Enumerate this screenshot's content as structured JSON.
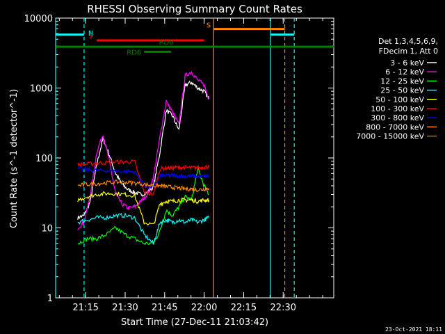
{
  "chart_data": {
    "type": "line",
    "title": "RHESSI Observing Summary Count Rates",
    "xlabel": "Start Time (27-Dec-11 21:03:42)",
    "ylabel": "Count Rate (s^-1 detector^-1)",
    "yscale": "log",
    "ylim": [
      1,
      10000
    ],
    "xlim_minutes": [
      21.06,
      22.82
    ],
    "x_tick_labels": [
      "21:15",
      "21:30",
      "21:45",
      "22:00",
      "22:15",
      "22:30"
    ],
    "x_tick_values": [
      21.25,
      21.5,
      21.75,
      22.0,
      22.25,
      22.5
    ],
    "y_tick_labels": [
      "1",
      "10",
      "100",
      "1000",
      "10000"
    ],
    "y_tick_values": [
      1,
      10,
      100,
      1000,
      10000
    ],
    "legend_header": [
      "Det 1,3,4,5,6,9,",
      "FDecim 1, Att 0"
    ],
    "legend_position": "right",
    "footer_date": "23-Oct-2021 18:11",
    "series": [
      {
        "name": "3 - 6 keV",
        "color": "#ffffff",
        "x": [
          21.2,
          21.24,
          21.28,
          21.32,
          21.36,
          21.4,
          21.44,
          21.48,
          21.52,
          21.56,
          21.6,
          21.64,
          21.68,
          21.72,
          21.76,
          21.8,
          21.84,
          21.88,
          21.92,
          21.96,
          22.0,
          22.03
        ],
        "y": [
          14,
          15,
          24,
          80,
          190,
          110,
          60,
          42,
          35,
          32,
          30,
          32,
          40,
          120,
          480,
          400,
          250,
          1100,
          1200,
          1000,
          900,
          700
        ]
      },
      {
        "name": "6 - 12 keV",
        "color": "#ff00ff",
        "x": [
          21.2,
          21.24,
          21.28,
          21.32,
          21.36,
          21.4,
          21.44,
          21.48,
          21.52,
          21.56,
          21.6,
          21.64,
          21.68,
          21.72,
          21.76,
          21.8,
          21.84,
          21.88,
          21.92,
          21.96,
          22.0,
          22.03
        ],
        "y": [
          10,
          12,
          30,
          120,
          220,
          90,
          30,
          22,
          19,
          20,
          24,
          30,
          55,
          200,
          650,
          450,
          300,
          1500,
          1700,
          1300,
          1100,
          700
        ]
      },
      {
        "name": "12 - 25 keV",
        "color": "#00ff00",
        "x": [
          21.2,
          21.26,
          21.32,
          21.38,
          21.44,
          21.5,
          21.56,
          21.62,
          21.68,
          21.72,
          21.76,
          21.8,
          21.84,
          21.88,
          21.92,
          21.96,
          22.0,
          22.03
        ],
        "y": [
          6,
          7,
          7,
          8,
          10,
          8,
          7,
          6,
          6,
          9,
          18,
          15,
          20,
          28,
          25,
          70,
          40,
          30
        ]
      },
      {
        "name": "25 - 50 keV",
        "color": "#00ffff",
        "x": [
          21.2,
          21.26,
          21.32,
          21.38,
          21.44,
          21.5,
          21.56,
          21.62,
          21.68,
          21.72,
          21.76,
          21.8,
          21.84,
          21.88,
          21.92,
          21.96,
          22.0,
          22.03
        ],
        "y": [
          12,
          13,
          14,
          14,
          15,
          15,
          14,
          8,
          6,
          12,
          13,
          12,
          13,
          12,
          13,
          12,
          13,
          14
        ]
      },
      {
        "name": "50 - 100 keV",
        "color": "#ffff00",
        "x": [
          21.2,
          21.26,
          21.32,
          21.38,
          21.44,
          21.5,
          21.56,
          21.62,
          21.68,
          21.72,
          21.76,
          21.8,
          21.84,
          21.88,
          21.92,
          21.96,
          22.0,
          22.03
        ],
        "y": [
          25,
          28,
          30,
          31,
          31,
          30,
          29,
          12,
          11,
          22,
          24,
          24,
          25,
          25,
          25,
          24,
          25,
          25
        ]
      },
      {
        "name": "100 - 300 keV",
        "color": "#ff0000",
        "x": [
          21.2,
          21.26,
          21.32,
          21.38,
          21.44,
          21.5,
          21.56,
          21.62,
          21.68,
          21.72,
          21.76,
          21.8,
          21.84,
          21.88,
          21.92,
          21.96,
          22.0,
          22.03
        ],
        "y": [
          80,
          82,
          84,
          86,
          88,
          88,
          88,
          32,
          30,
          70,
          72,
          72,
          73,
          73,
          72,
          73,
          74,
          75
        ]
      },
      {
        "name": "300 - 800 keV",
        "color": "#0000ff",
        "x": [
          21.2,
          21.26,
          21.32,
          21.38,
          21.44,
          21.5,
          21.56,
          21.62,
          21.68,
          21.72,
          21.76,
          21.8,
          21.84,
          21.88,
          21.92,
          21.96,
          22.0,
          22.03
        ],
        "y": [
          70,
          68,
          66,
          66,
          65,
          64,
          64,
          40,
          38,
          55,
          56,
          56,
          55,
          55,
          55,
          54,
          55,
          55
        ]
      },
      {
        "name": "800 - 7000 keV",
        "color": "#ff8800",
        "x": [
          21.2,
          21.26,
          21.32,
          21.38,
          21.44,
          21.5,
          21.56,
          21.62,
          21.68,
          21.72,
          21.76,
          21.8,
          21.84,
          21.88,
          21.92,
          21.96,
          22.0,
          22.03
        ],
        "y": [
          40,
          42,
          43,
          44,
          45,
          45,
          44,
          42,
          40,
          40,
          39,
          38,
          37,
          36,
          36,
          35,
          36,
          37
        ]
      },
      {
        "name": "7000 - 15000 keV",
        "color": "#aa7700",
        "x": [],
        "y": []
      }
    ],
    "status_bars": [
      {
        "label": "N",
        "color": "#00ffff",
        "ranges": [
          [
            21.06,
            21.24
          ],
          [
            22.42,
            22.57
          ]
        ],
        "y": 5800
      },
      {
        "label": "S",
        "color": "#ff8800",
        "ranges": [
          [
            22.06,
            22.51
          ]
        ],
        "y": 7000
      },
      {
        "label": "F",
        "color": "#ff0000",
        "ranges": [
          [
            21.32,
            22.0
          ]
        ],
        "y": 4800
      },
      {
        "label": "RD0",
        "color": "#008000",
        "ranges": [
          [
            21.06,
            22.82
          ]
        ],
        "y": 3900
      },
      {
        "label": "RD6",
        "color": "#008000",
        "ranges": [
          [
            21.62,
            21.79
          ]
        ],
        "y": 3300
      }
    ],
    "vertical_markers": [
      {
        "x": 21.06,
        "color": "#00ffff",
        "style": "solid"
      },
      {
        "x": 21.24,
        "color": "#00ffff",
        "style": "dashed"
      },
      {
        "x": 22.06,
        "color": "#ff8800",
        "style": "solid"
      },
      {
        "x": 22.42,
        "color": "#00ffff",
        "style": "solid"
      },
      {
        "x": 22.51,
        "color": "#ff8800",
        "style": "dashed"
      },
      {
        "x": 22.57,
        "color": "#00ffff",
        "style": "dashed"
      }
    ]
  }
}
